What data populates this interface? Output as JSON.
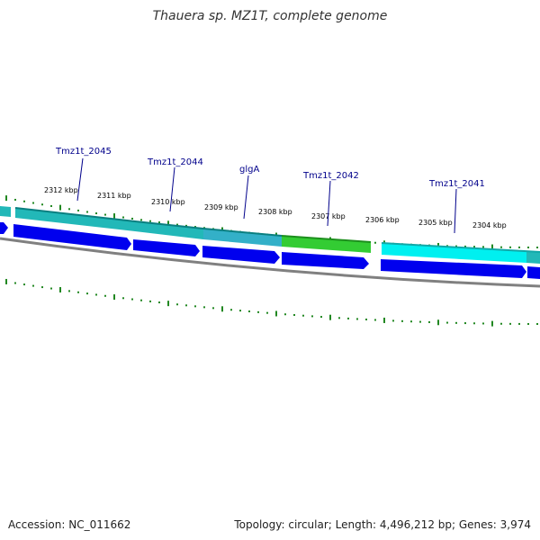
{
  "title": "Thauera sp. MZ1T, complete genome",
  "footer": {
    "accession": "Accession: NC_011662",
    "summary": "Topology: circular; Length: 4,496,212 bp; Genes: 3,974"
  },
  "ticks": [
    "2312 kbp",
    "2311 kbp",
    "2310 kbp",
    "2309 kbp",
    "2308 kbp",
    "2307 kbp",
    "2306 kbp",
    "2305 kbp",
    "2304 kbp"
  ],
  "genes": [
    "Tmz1t_2045",
    "Tmz1t_2044",
    "glgA",
    "Tmz1t_2042",
    "Tmz1t_2041"
  ],
  "colors": {
    "cds_dark_blue": "#0000ee",
    "teal_feature": "#22b8b8",
    "cyan_feature": "#00f0f0",
    "green_feature": "#33cc33",
    "tick_green": "#228822",
    "backbone_gray": "#808080",
    "label_blue": "#00008b"
  }
}
